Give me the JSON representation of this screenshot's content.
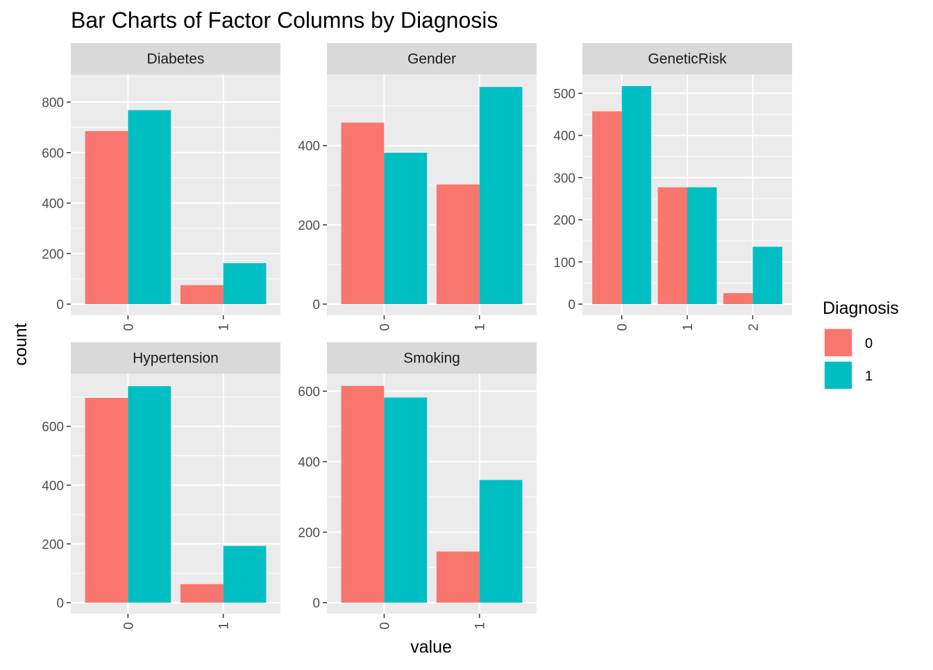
{
  "chart_data": {
    "type": "bar",
    "title": "Bar Charts of Factor Columns by Diagnosis",
    "xlabel": "value",
    "ylabel": "count",
    "grid": true,
    "legend": {
      "title": "Diagnosis",
      "position": "right",
      "entries": [
        {
          "label": "0",
          "color": "#F8766D"
        },
        {
          "label": "1",
          "color": "#00BFC4"
        }
      ]
    },
    "panels": [
      {
        "name": "Diabetes",
        "categories": [
          "0",
          "1"
        ],
        "yticks": [
          0,
          200,
          400,
          600,
          800
        ],
        "ylim": [
          0,
          910
        ],
        "series": [
          {
            "name": "0",
            "values": [
              685,
              75
            ]
          },
          {
            "name": "1",
            "values": [
              768,
              162
            ]
          }
        ]
      },
      {
        "name": "Gender",
        "categories": [
          "0",
          "1"
        ],
        "yticks": [
          0,
          200,
          400
        ],
        "ylim": [
          0,
          580
        ],
        "series": [
          {
            "name": "0",
            "values": [
              458,
              302
            ]
          },
          {
            "name": "1",
            "values": [
              382,
              548
            ]
          }
        ]
      },
      {
        "name": "GeneticRisk",
        "categories": [
          "0",
          "1",
          "2"
        ],
        "yticks": [
          0,
          100,
          200,
          300,
          400,
          500
        ],
        "ylim": [
          0,
          545
        ],
        "series": [
          {
            "name": "0",
            "values": [
              457,
              277,
              26
            ]
          },
          {
            "name": "1",
            "values": [
              517,
              277,
              136
            ]
          }
        ]
      },
      {
        "name": "Hypertension",
        "categories": [
          "0",
          "1"
        ],
        "yticks": [
          0,
          200,
          400,
          600
        ],
        "ylim": [
          0,
          780
        ],
        "series": [
          {
            "name": "0",
            "values": [
              697,
              63
            ]
          },
          {
            "name": "1",
            "values": [
              737,
              193
            ]
          }
        ]
      },
      {
        "name": "Smoking",
        "categories": [
          "0",
          "1"
        ],
        "yticks": [
          0,
          200,
          400,
          600
        ],
        "ylim": [
          0,
          650
        ],
        "series": [
          {
            "name": "0",
            "values": [
              615,
              145
            ]
          },
          {
            "name": "1",
            "values": [
              582,
              348
            ]
          }
        ]
      }
    ]
  }
}
